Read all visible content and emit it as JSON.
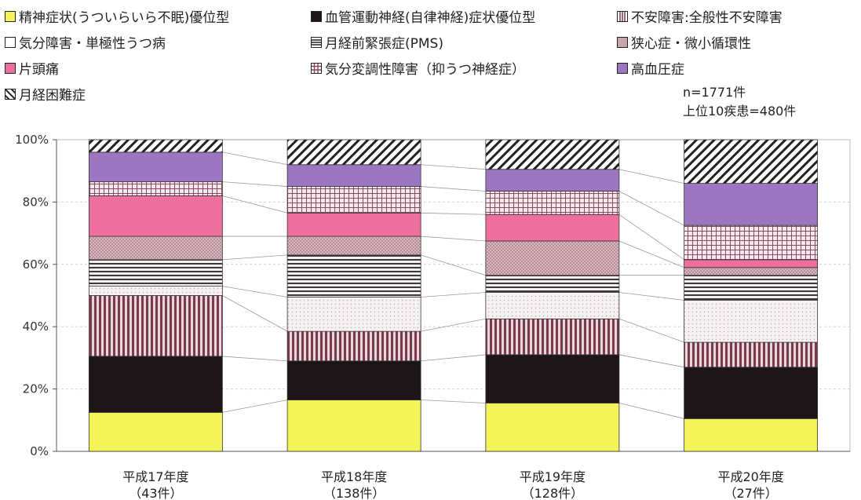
{
  "chart_data": {
    "type": "bar",
    "stacked": true,
    "percent": true,
    "categories": [
      "平成17年度",
      "平成18年度",
      "平成19年度",
      "平成20年度"
    ],
    "category_counts": [
      "（43件）",
      "（138件）",
      "（128件）",
      "（27件）"
    ],
    "yticks": [
      "0%",
      "20%",
      "40%",
      "60%",
      "80%",
      "100%"
    ],
    "ylim": [
      0,
      100
    ],
    "grid": true,
    "legend_position": "top",
    "notes": [
      "n=1771件",
      "上位10疾患=480件"
    ],
    "series": [
      {
        "name": "精神症状(うついらいら不眠)優位型",
        "values": [
          12.5,
          16.5,
          15.5,
          10.5
        ],
        "color": "#f4f35a",
        "pattern": "solid"
      },
      {
        "name": "血管運動神経(自律神経)症状優位型",
        "values": [
          18.0,
          12.5,
          15.5,
          16.5
        ],
        "color": "#1c1618",
        "pattern": "solid"
      },
      {
        "name": "不安障害:全般性不安障害",
        "values": [
          19.5,
          9.5,
          11.5,
          8.0
        ],
        "color": "#7a3b4c",
        "pattern": "vertical"
      },
      {
        "name": "気分障害・単極性うつ病",
        "values": [
          3.0,
          11.0,
          8.5,
          13.5
        ],
        "color": "#f1eef1",
        "pattern": "dots"
      },
      {
        "name": "月経前緊張症(PMS)",
        "values": [
          8.5,
          13.5,
          5.5,
          8.0
        ],
        "color": "#4a4a4a",
        "pattern": "horizontal"
      },
      {
        "name": "狭心症・微小循環性",
        "values": [
          7.5,
          6.0,
          11.0,
          2.5
        ],
        "color": "#c8a4ac",
        "pattern": "mesh"
      },
      {
        "name": "片頭痛",
        "values": [
          13.0,
          7.5,
          8.5,
          2.5
        ],
        "color": "#ee6f9e",
        "pattern": "solid"
      },
      {
        "name": "気分変調性障害（抑うつ神経症）",
        "values": [
          4.5,
          8.5,
          7.5,
          11.0
        ],
        "color": "#8a4a5e",
        "pattern": "grid"
      },
      {
        "name": "高血圧症",
        "values": [
          9.5,
          7.0,
          7.0,
          13.5
        ],
        "color": "#9c76c0",
        "pattern": "solid"
      },
      {
        "name": "月経困難症",
        "values": [
          4.0,
          8.0,
          9.5,
          14.0
        ],
        "color": "#222222",
        "pattern": "diag"
      }
    ]
  }
}
